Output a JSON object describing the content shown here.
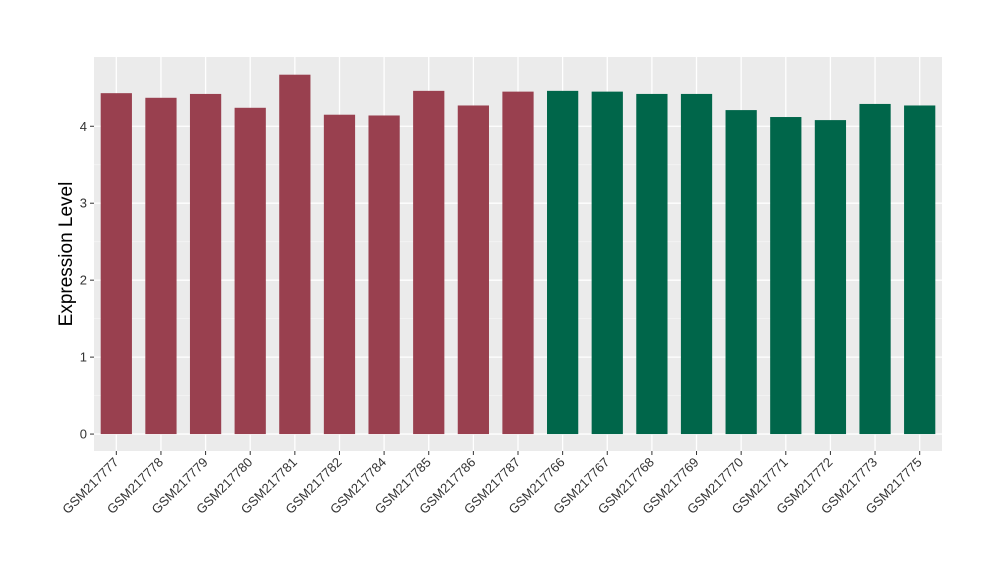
{
  "chart_data": {
    "type": "bar",
    "title": "",
    "xlabel": "",
    "ylabel": "Expression Level",
    "ylim": [
      -0.22,
      4.9
    ],
    "yticks": [
      0,
      1,
      2,
      3,
      4
    ],
    "grid": true,
    "legend": "none",
    "panel_background": "#ebebeb",
    "categories": [
      "GSM217777",
      "GSM217778",
      "GSM217779",
      "GSM217780",
      "GSM217781",
      "GSM217782",
      "GSM217784",
      "GSM217785",
      "GSM217786",
      "GSM217787",
      "GSM217766",
      "GSM217767",
      "GSM217768",
      "GSM217769",
      "GSM217770",
      "GSM217771",
      "GSM217772",
      "GSM217773",
      "GSM217775"
    ],
    "values": [
      4.43,
      4.37,
      4.42,
      4.24,
      4.67,
      4.15,
      4.14,
      4.46,
      4.27,
      4.45,
      4.46,
      4.45,
      4.42,
      4.42,
      4.21,
      4.12,
      4.08,
      4.29,
      4.27
    ],
    "groups": [
      0,
      0,
      0,
      0,
      0,
      0,
      0,
      0,
      0,
      0,
      1,
      1,
      1,
      1,
      1,
      1,
      1,
      1,
      1
    ],
    "group_colors": [
      "#99404f",
      "#00664a"
    ]
  }
}
